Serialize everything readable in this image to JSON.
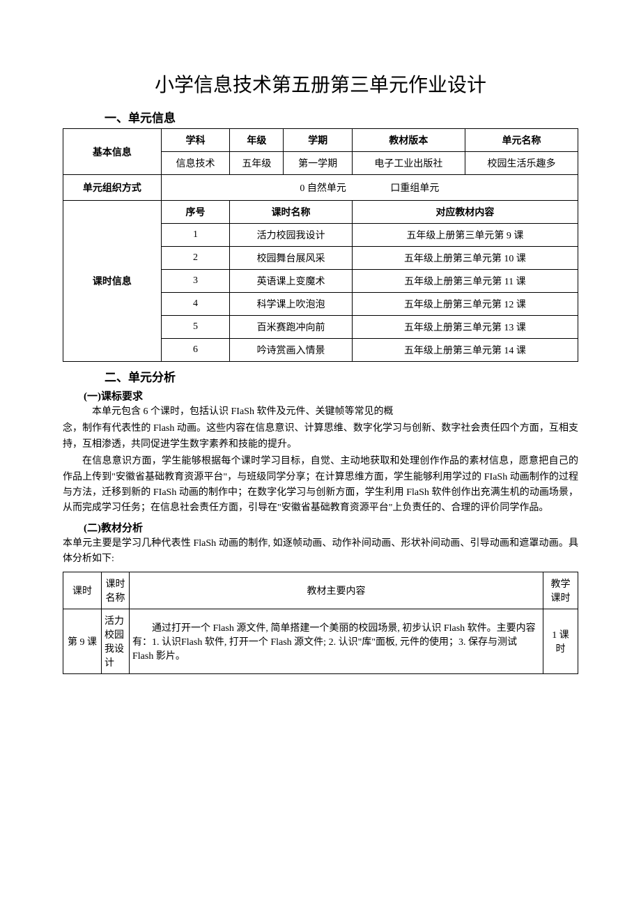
{
  "title": "小学信息技术第五册第三单元作业设计",
  "section1": {
    "heading": "一、单元信息",
    "table": {
      "basic_info_label": "基本信息",
      "headers": {
        "subject": "学科",
        "grade": "年级",
        "semester": "学期",
        "textbook": "教材版本",
        "unit_name": "单元名称"
      },
      "values": {
        "subject": "信息技术",
        "grade": "五年级",
        "semester": "第一学期",
        "textbook": "电子工业出版社",
        "unit_name": "校园生活乐趣多"
      },
      "unit_org_label": "单元组织方式",
      "unit_org_option1": "0 自然单元",
      "unit_org_option2": "口重组单元",
      "lesson_info_label": "课时信息",
      "lesson_headers": {
        "seq": "序号",
        "name": "课时名称",
        "content": "对应教材内容"
      },
      "lessons": [
        {
          "seq": "1",
          "name": "活力校园我设计",
          "content": "五年级上册第三单元第 9 课"
        },
        {
          "seq": "2",
          "name": "校园舞台展风采",
          "content": "五年级上册第三单元第 10 课"
        },
        {
          "seq": "3",
          "name": "英语课上变魔术",
          "content": "五年级上册第三单元第 11 课"
        },
        {
          "seq": "4",
          "name": "科学课上吹泡泡",
          "content": "五年级上册第三单元第 12 课"
        },
        {
          "seq": "5",
          "name": "百米赛跑冲向前",
          "content": "五年级上册第三单元第 13 课"
        },
        {
          "seq": "6",
          "name": "吟诗赏画入情景",
          "content": "五年级上册第三单元第 14 课"
        }
      ]
    }
  },
  "section2": {
    "heading": "二、单元分析",
    "sub1": {
      "heading": "(一)课标要求",
      "p1": "本单元包含 6 个课时，包括认识 FIaSh 软件及元件、关键帧等常见的概",
      "p2": "念，制作有代表性的 Flash 动画。这些内容在信息意识、计算思维、数字化学习与创新、数字社会责任四个方面，互相支持，互相渗透，共同促进学生数字素养和技能的提升。",
      "p3": "在信息意识方面，学生能够根据每个课时学习目标，自觉、主动地获取和处理创作作品的素材信息，愿意把自己的作品上传到\"安徽省基础教育资源平台\"，与班级同学分享；在计算思维方面，学生能够利用学过的 FIaSh 动画制作的过程与方法，迁移到新的 FIaSh 动画的制作中；在数字化学习与创新方面，学生利用 FlaSh 软件创作出充满生机的动画场景，从而完成学习任务；在信息社会责任方面，引导在\"安徽省基础教育资源平台\"上负责任的、合理的评价同学作品。"
    },
    "sub2": {
      "heading": "(二)教材分析",
      "p1": "本单元主要是学习几种代表性 FlaSh 动画的制作, 如逐帧动画、动作补间动画、形状补间动画、引导动画和遮罩动画。具体分析如下:",
      "table": {
        "headers": {
          "lesson": "课时",
          "name": "课时名称",
          "content": "教材主要内容",
          "duration": "教学课时"
        },
        "row1": {
          "lesson": "第 9 课",
          "name": "活力校园我设计",
          "content": "通过打开一个 Flash 源文件, 简单搭建一个美丽的校园场景, 初步认识 Flash 软件。主要内容有：1. 认识Flash 软件, 打开一个 Flash 源文件; 2. 认识\"库\"面板, 元件的使用；3. 保存与测试 Flash 影片。",
          "duration": "1 课 时"
        }
      }
    }
  }
}
